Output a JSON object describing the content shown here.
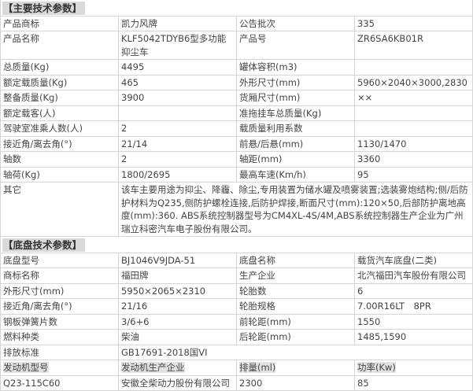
{
  "main_section": {
    "title": "【主要技术参数】",
    "rows": [
      [
        "产品商标",
        "凯力风牌",
        "公告批次",
        "335"
      ],
      [
        "产品名称",
        "KLF5042TDYB6型多功能抑尘车",
        "产品号",
        "ZR6SA6KB01R"
      ],
      [
        "总质量(Kg)",
        "4495",
        "罐体容积(m3)",
        ""
      ],
      [
        "额定载质量(Kg)",
        "465",
        "外形尺寸(mm)",
        "5960×2040×3000,2830"
      ],
      [
        "整备质量(Kg)",
        "3900",
        "货厢尺寸(mm)",
        "××"
      ],
      [
        "额定载客(人)",
        "",
        "准拖挂车总质量(Kg)",
        ""
      ],
      [
        "驾驶室准乘人数(人)",
        "2",
        "载质量利用系数",
        ""
      ],
      [
        "接近角/离去角(°)",
        "21/14",
        "前悬/后悬(mm)",
        "1130/1470"
      ],
      [
        "轴数",
        "2",
        "轴距(mm)",
        "3360"
      ],
      [
        "轴荷(Kg)",
        "1800/2695",
        "最高车速(Km/h)",
        "95"
      ]
    ],
    "other": {
      "label": "其它",
      "value": "该车主要用途为抑尘、降霾、除尘,专用装置为储水罐及喷雾装置;选装雾炮结构;侧/后防护材料为Q235,侧防护螺栓连接,后防护焊接,断面尺寸(mm):120×50,后部防护离地高度(mm):360. ABS系统控制器型号为CM4XL-4S/4M,ABS系统控制器生产企业为广州瑞立科密汽车电子股份有限公司。"
    }
  },
  "chassis_section": {
    "title": "【底盘技术参数】",
    "rows": [
      [
        "底盘型号",
        "BJ1046V9JDA-51",
        "底盘名称",
        "载货汽车底盘(二类)"
      ],
      [
        "商标名称",
        "福田牌",
        "生产企业",
        "北汽福田汽车股份有限公司"
      ],
      [
        "外形尺寸(mm)",
        "5950×2065×2310",
        "轮胎数",
        "6"
      ],
      [
        "接近角/离去角(°)",
        "21/16",
        "轮胎规格",
        "7.00R16LT　8PR"
      ],
      [
        "钢板弹簧片数",
        "3/6+6",
        "前轮距(mm)",
        "1550"
      ],
      [
        "燃料种类",
        "柴油",
        "后轮距(mm)",
        "1485,1590"
      ]
    ],
    "emission": {
      "label": "排放标准",
      "value": "GB17691-2018国VI"
    },
    "engine_header": [
      "发动机型号",
      "发动机生产企业",
      "排量(ml)",
      "功率(Kw)"
    ],
    "engine_row": [
      "Q23-115C60",
      "安徽全柴动力股份有限公司",
      "2300",
      "85"
    ]
  }
}
